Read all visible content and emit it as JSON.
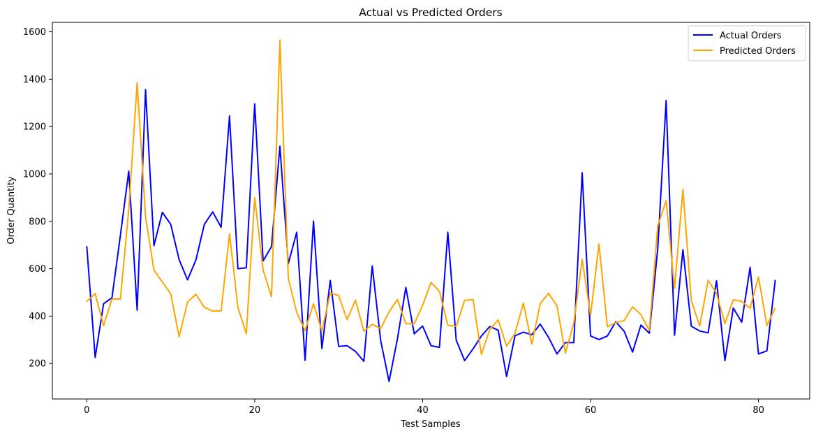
{
  "chart_data": {
    "type": "line",
    "title": "Actual vs Predicted Orders",
    "xlabel": "Test Samples",
    "ylabel": "Order Quantity",
    "xlim": [
      -4.1,
      86.1
    ],
    "ylim": [
      50,
      1640
    ],
    "xticks": [
      0,
      20,
      40,
      60,
      80
    ],
    "yticks": [
      200,
      400,
      600,
      800,
      1000,
      1200,
      1400,
      1600
    ],
    "grid": false,
    "legend_position": "top-right",
    "series": [
      {
        "name": "Actual Orders",
        "color": "#0000ff",
        "values": [
          695,
          225,
          452,
          477,
          740,
          1012,
          425,
          1356,
          697,
          838,
          787,
          638,
          553,
          637,
          787,
          840,
          775,
          1245,
          600,
          604,
          1296,
          633,
          693,
          1117,
          621,
          754,
          213,
          801,
          263,
          550,
          272,
          275,
          251,
          209,
          611,
          297,
          124,
          304,
          521,
          325,
          358,
          275,
          268,
          754,
          298,
          212,
          261,
          316,
          356,
          340,
          145,
          317,
          332,
          321,
          366,
          310,
          240,
          288,
          288,
          1005,
          316,
          301,
          316,
          376,
          336,
          248,
          362,
          328,
          684,
          1310,
          319,
          680,
          357,
          337,
          329,
          549,
          212,
          434,
          374,
          606,
          240,
          253,
          553
        ]
      },
      {
        "name": "Predicted Orders",
        "color": "#ffa500",
        "values": [
          462,
          495,
          359,
          472,
          472,
          849,
          1384,
          818,
          594,
          544,
          494,
          312,
          459,
          492,
          437,
          421,
          422,
          747,
          437,
          325,
          900,
          594,
          482,
          1565,
          559,
          416,
          339,
          452,
          337,
          497,
          487,
          385,
          467,
          336,
          365,
          347,
          418,
          470,
          368,
          367,
          446,
          542,
          504,
          361,
          357,
          466,
          470,
          238,
          344,
          384,
          273,
          327,
          455,
          281,
          452,
          496,
          443,
          244,
          370,
          639,
          403,
          704,
          355,
          372,
          381,
          439,
          406,
          339,
          781,
          887,
          516,
          935,
          465,
          358,
          551,
          496,
          368,
          469,
          462,
          433,
          565,
          360,
          435
        ]
      }
    ]
  }
}
